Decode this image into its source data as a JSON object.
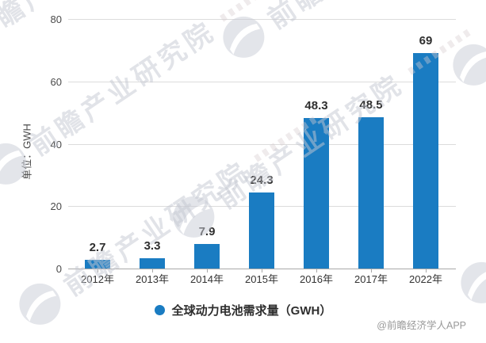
{
  "chart_data": {
    "type": "bar",
    "categories": [
      "2012年",
      "2013年",
      "2014年",
      "2015年",
      "2016年",
      "2017年",
      "2022年"
    ],
    "values": [
      2.7,
      3.3,
      7.9,
      24.3,
      48.3,
      48.5,
      69
    ],
    "title": "",
    "xlabel": "",
    "ylabel": "单位：GWH",
    "ylim": [
      0,
      80
    ],
    "yticks": [
      0,
      20,
      40,
      60,
      80
    ],
    "grid": true,
    "legend_position": "bottom",
    "series_name": "全球动力电池需求量（GWH）",
    "bar_color": "#1a7cc2"
  },
  "legend": {
    "label": "全球动力电池需求量（GWH）"
  },
  "y_axis": {
    "title": "单位：GWH"
  },
  "watermark": {
    "text": "前瞻产业研究院"
  },
  "credit": {
    "text": "@前瞻经济学人APP"
  }
}
